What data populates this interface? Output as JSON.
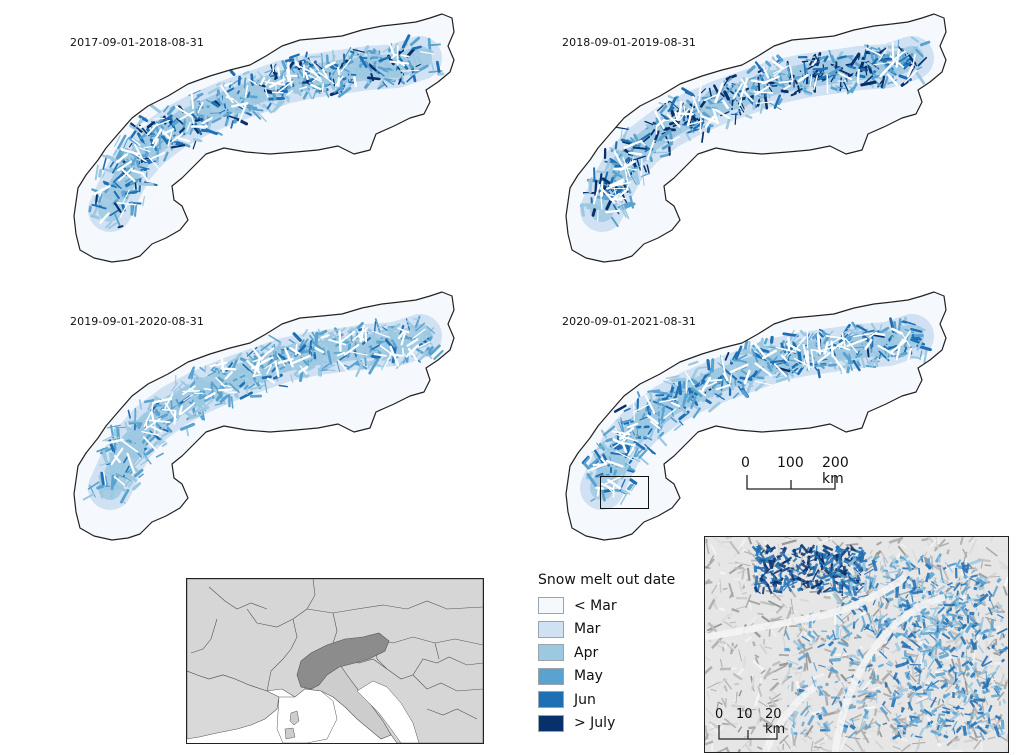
{
  "panels": [
    {
      "label": "2017-09-01-2018-08-31",
      "dark_level": 0.8
    },
    {
      "label": "2018-09-01-2019-08-31",
      "dark_level": 1.0
    },
    {
      "label": "2019-09-01-2020-08-31",
      "dark_level": 0.55
    },
    {
      "label": "2020-09-01-2021-08-31",
      "dark_level": 0.75
    }
  ],
  "scale_bar": {
    "labels": [
      "0",
      "100",
      "200 km"
    ]
  },
  "legend": {
    "title": "Snow melt out date",
    "items": [
      {
        "label": "< Mar",
        "color": "#f5f9fd"
      },
      {
        "label": "Mar",
        "color": "#cfe1f2"
      },
      {
        "label": "Apr",
        "color": "#9dc8e2"
      },
      {
        "label": "May",
        "color": "#5aa2d0"
      },
      {
        "label": "Jun",
        "color": "#1f6fb4"
      },
      {
        "label": "> July",
        "color": "#08306b"
      }
    ]
  },
  "inset": {
    "scale_labels": [
      "0",
      "10",
      "20 km"
    ]
  },
  "colors": {
    "outline": "#222222",
    "land": "#d9d9d9",
    "sea": "#ffffff",
    "alps_region": "#8c8c8c"
  }
}
